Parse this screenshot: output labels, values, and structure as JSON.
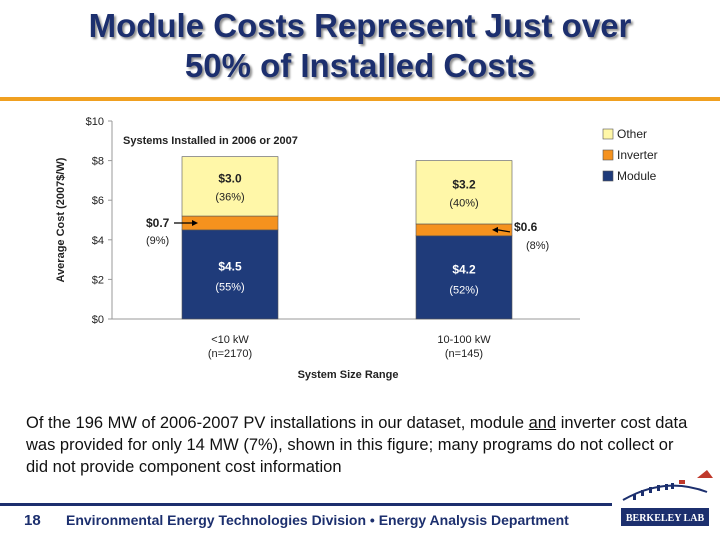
{
  "slide": {
    "title_line1": "Module Costs Represent Just over",
    "title_line2": "50% of Installed Costs",
    "caption_part1": "Of the 196 MW of 2006-2007 PV installations in our dataset, module ",
    "caption_emphasis": "and",
    "caption_part2": " inverter cost data was provided for only 14 MW (7%), shown in this figure; many programs do not collect or did not provide component cost information",
    "page_number": "18",
    "footer": "Environmental Energy Technologies Division • Energy Analysis Department",
    "logo_text": "BERKELEY LAB"
  },
  "colors": {
    "title": "#1c2f6e",
    "accent_rule": "#f0a020",
    "module": "#1f3b7a",
    "inverter": "#f5921e",
    "other": "#fff7a8"
  },
  "chart_data": {
    "type": "bar",
    "stacked": true,
    "title": "Systems Installed in 2006 or 2007",
    "xlabel": "System Size Range",
    "ylabel": "Average Cost (2007$/W)",
    "ylim": [
      0,
      10
    ],
    "yticks": [
      0,
      2,
      4,
      6,
      8,
      10
    ],
    "ytick_labels": [
      "$0",
      "$2",
      "$4",
      "$6",
      "$8",
      "$10"
    ],
    "categories": [
      "<10 kW",
      "10-100 kW"
    ],
    "category_notes": [
      "(n=2170)",
      "(n=145)"
    ],
    "series": [
      {
        "name": "Module",
        "color": "#1f3b7a",
        "values": [
          4.5,
          4.2
        ],
        "labels": [
          "$4.5",
          "$4.2"
        ],
        "shares": [
          "(55%)",
          "(52%)"
        ]
      },
      {
        "name": "Inverter",
        "color": "#f5921e",
        "values": [
          0.7,
          0.6
        ],
        "labels": [
          "$0.7",
          "$0.6"
        ],
        "shares": [
          "(9%)",
          "(8%)"
        ]
      },
      {
        "name": "Other",
        "color": "#fff7a8",
        "values": [
          3.0,
          3.2
        ],
        "labels": [
          "$3.0",
          "$3.2"
        ],
        "shares": [
          "(36%)",
          "(40%)"
        ]
      }
    ],
    "legend": [
      "Other",
      "Inverter",
      "Module"
    ],
    "legend_position": "top-right",
    "grid": false
  }
}
